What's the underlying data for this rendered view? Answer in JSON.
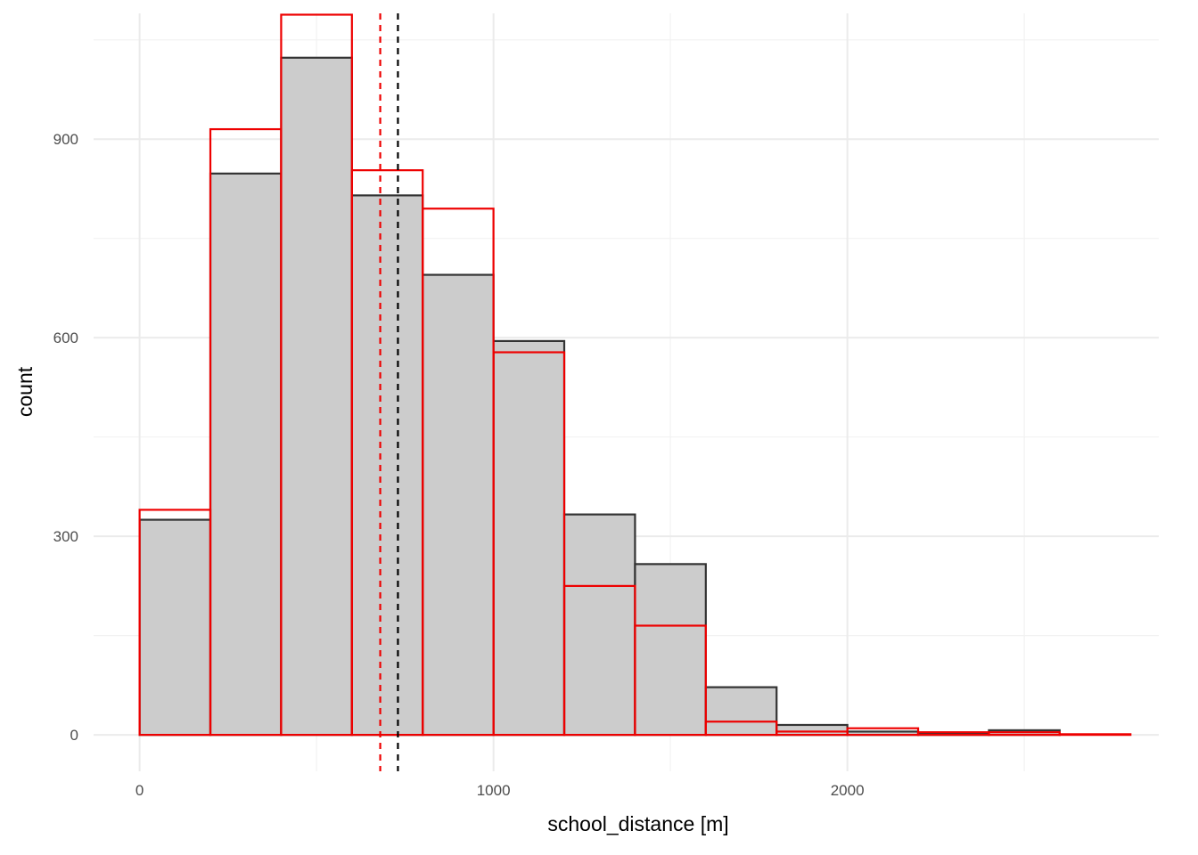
{
  "chart_data": {
    "type": "bar",
    "title": "",
    "xlabel": "school_distance [m]",
    "ylabel": "count",
    "xlim": [
      -130,
      2880
    ],
    "ylim": [
      -55,
      1090
    ],
    "x_ticks": [
      0,
      1000,
      2000
    ],
    "y_ticks": [
      0,
      300,
      600,
      900
    ],
    "x_tick_labels": [
      "0",
      "1000",
      "2000"
    ],
    "y_tick_labels": [
      "0",
      "300",
      "600",
      "900"
    ],
    "grid": true,
    "bin_width": 200,
    "series": [
      {
        "bin_starts": [
          0,
          200,
          400,
          600,
          800,
          1000,
          1200,
          1400,
          1600,
          1800,
          2000,
          2200,
          2400
        ],
        "values": [
          325,
          848,
          1023,
          815,
          695,
          595,
          333,
          258,
          72,
          15,
          5,
          3,
          7
        ],
        "fill": "#cccccc",
        "stroke": "#333333",
        "mean_line": 730,
        "mean_color": "#000000"
      },
      {
        "bin_starts": [
          0,
          200,
          400,
          600,
          800,
          1000,
          1200,
          1400,
          1600,
          1800,
          2000,
          2200,
          2400,
          2600
        ],
        "values": [
          340,
          915,
          1088,
          853,
          795,
          578,
          225,
          165,
          20,
          5,
          10,
          4,
          4,
          1
        ],
        "fill": "none",
        "stroke": "#ee0000",
        "mean_line": 680,
        "mean_color": "#ee0000"
      }
    ]
  }
}
